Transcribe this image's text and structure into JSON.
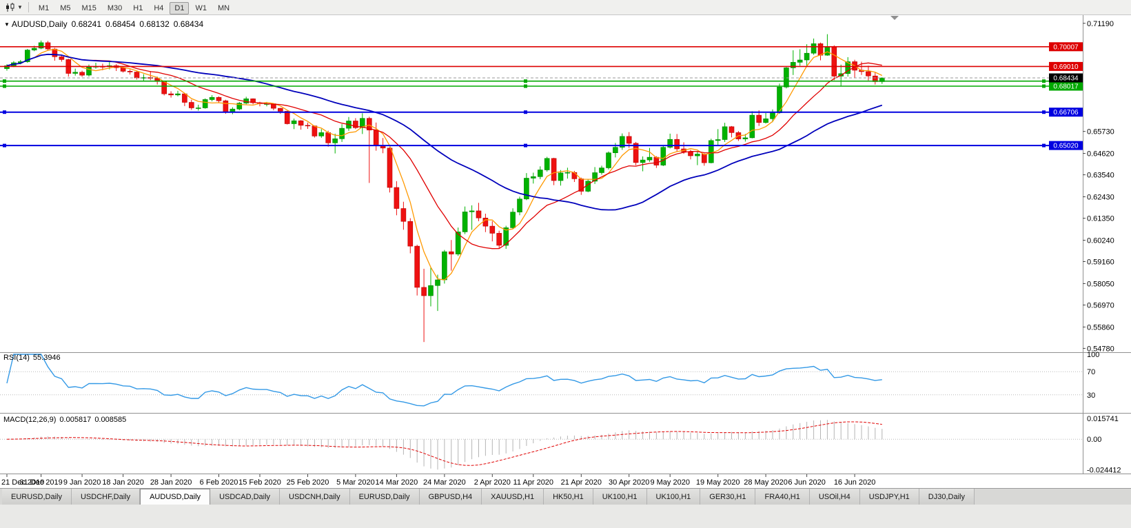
{
  "toolbar": {
    "timeframes": [
      "M1",
      "M5",
      "M15",
      "M30",
      "H1",
      "H4",
      "D1",
      "W1",
      "MN"
    ],
    "active_timeframe": "D1"
  },
  "chart_header": {
    "symbol": "AUDUSD,Daily",
    "open": "0.68241",
    "high": "0.68454",
    "low": "0.68132",
    "close": "0.68434"
  },
  "rsi_panel": {
    "name": "RSI(14)",
    "value": "55.3946"
  },
  "macd_panel": {
    "name": "MACD(12,26,9)",
    "main": "0.005817",
    "signal": "0.008585"
  },
  "tabs": {
    "items": [
      "EURUSD,Daily",
      "USDCHF,Daily",
      "AUDUSD,Daily",
      "USDCAD,Daily",
      "USDCNH,Daily",
      "EURUSD,Daily",
      "GBPUSD,H4",
      "XAUUSD,H1",
      "HK50,H1",
      "UK100,H1",
      "UK100,H1",
      "GER30,H1",
      "FRA40,H1",
      "USOil,H4",
      "USDJPY,H1",
      "DJ30,Daily"
    ],
    "active_index": 2
  },
  "chart_data": {
    "type": "candlestick",
    "symbol": "AUDUSD",
    "timeframe": "Daily",
    "ylim": [
      0.5462,
      0.716
    ],
    "colors": {
      "up": "#00b200",
      "down": "#ee1111",
      "up_border": "#008800",
      "down_border": "#bb0000",
      "background": "#ffffff",
      "axis_text": "#000000"
    },
    "candles": [
      [
        0.689,
        0.6912,
        0.688,
        0.6905
      ],
      [
        0.6905,
        0.6928,
        0.6898,
        0.692
      ],
      [
        0.692,
        0.6934,
        0.6912,
        0.6925
      ],
      [
        0.6925,
        0.699,
        0.692,
        0.6984
      ],
      [
        0.6984,
        0.7006,
        0.6978,
        0.6993
      ],
      [
        0.6993,
        0.7032,
        0.6988,
        0.7021
      ],
      [
        0.7021,
        0.703,
        0.698,
        0.6989
      ],
      [
        0.6989,
        0.6995,
        0.693,
        0.695
      ],
      [
        0.695,
        0.696,
        0.6925,
        0.6936
      ],
      [
        0.6936,
        0.694,
        0.685,
        0.6866
      ],
      [
        0.6866,
        0.689,
        0.6855,
        0.6872
      ],
      [
        0.6872,
        0.688,
        0.6849,
        0.6857
      ],
      [
        0.6857,
        0.6911,
        0.685,
        0.6901
      ],
      [
        0.6901,
        0.692,
        0.689,
        0.6901
      ],
      [
        0.6901,
        0.6915,
        0.6882,
        0.69
      ],
      [
        0.69,
        0.6925,
        0.6886,
        0.6905
      ],
      [
        0.6905,
        0.6913,
        0.6878,
        0.6895
      ],
      [
        0.6895,
        0.69,
        0.687,
        0.6877
      ],
      [
        0.6877,
        0.6886,
        0.686,
        0.6873
      ],
      [
        0.6873,
        0.6878,
        0.6835,
        0.6843
      ],
      [
        0.6843,
        0.6862,
        0.6827,
        0.6845
      ],
      [
        0.6845,
        0.6878,
        0.6832,
        0.6841
      ],
      [
        0.6841,
        0.685,
        0.681,
        0.6825
      ],
      [
        0.6825,
        0.6828,
        0.6755,
        0.6763
      ],
      [
        0.6763,
        0.6776,
        0.6744,
        0.6757
      ],
      [
        0.6757,
        0.6778,
        0.675,
        0.6763
      ],
      [
        0.6763,
        0.6765,
        0.6701,
        0.672
      ],
      [
        0.672,
        0.6733,
        0.6682,
        0.6692
      ],
      [
        0.6692,
        0.6708,
        0.6678,
        0.6692
      ],
      [
        0.6692,
        0.674,
        0.6688,
        0.6734
      ],
      [
        0.6734,
        0.6756,
        0.6725,
        0.6745
      ],
      [
        0.6745,
        0.675,
        0.6717,
        0.6728
      ],
      [
        0.6728,
        0.6733,
        0.6662,
        0.6671
      ],
      [
        0.6671,
        0.6695,
        0.666,
        0.6686
      ],
      [
        0.6686,
        0.6722,
        0.668,
        0.6716
      ],
      [
        0.6716,
        0.6748,
        0.671,
        0.6738
      ],
      [
        0.6738,
        0.674,
        0.671,
        0.6718
      ],
      [
        0.6718,
        0.6723,
        0.67,
        0.6713
      ],
      [
        0.6713,
        0.6722,
        0.67,
        0.6713
      ],
      [
        0.6713,
        0.6715,
        0.668,
        0.669
      ],
      [
        0.669,
        0.6692,
        0.6662,
        0.6675
      ],
      [
        0.6675,
        0.6677,
        0.6608,
        0.6612
      ],
      [
        0.6612,
        0.6638,
        0.6585,
        0.6627
      ],
      [
        0.6627,
        0.663,
        0.6582,
        0.6604
      ],
      [
        0.6604,
        0.6618,
        0.6586,
        0.6601
      ],
      [
        0.6601,
        0.6603,
        0.6542,
        0.655
      ],
      [
        0.655,
        0.6585,
        0.6541,
        0.6567
      ],
      [
        0.6567,
        0.6577,
        0.6496,
        0.6515
      ],
      [
        0.6515,
        0.6562,
        0.6462,
        0.6536
      ],
      [
        0.6536,
        0.661,
        0.652,
        0.6589
      ],
      [
        0.6589,
        0.6646,
        0.6576,
        0.6626
      ],
      [
        0.6626,
        0.664,
        0.6585,
        0.6592
      ],
      [
        0.6592,
        0.6665,
        0.656,
        0.6639
      ],
      [
        0.6639,
        0.6647,
        0.6313,
        0.658
      ],
      [
        0.658,
        0.6618,
        0.6476,
        0.6503
      ],
      [
        0.6503,
        0.654,
        0.6463,
        0.6489
      ],
      [
        0.6489,
        0.6493,
        0.6265,
        0.629
      ],
      [
        0.629,
        0.6322,
        0.615,
        0.6184
      ],
      [
        0.6184,
        0.6218,
        0.6077,
        0.6119
      ],
      [
        0.6119,
        0.6135,
        0.5958,
        0.5994
      ],
      [
        0.5994,
        0.6001,
        0.5745,
        0.5786
      ],
      [
        0.5786,
        0.588,
        0.551,
        0.5744
      ],
      [
        0.5744,
        0.5885,
        0.569,
        0.5795
      ],
      [
        0.5795,
        0.585,
        0.5667,
        0.5824
      ],
      [
        0.5824,
        0.5975,
        0.5805,
        0.5966
      ],
      [
        0.5966,
        0.6025,
        0.587,
        0.5954
      ],
      [
        0.5954,
        0.6088,
        0.5945,
        0.6066
      ],
      [
        0.6066,
        0.6194,
        0.6055,
        0.6167
      ],
      [
        0.6167,
        0.62,
        0.6076,
        0.6172
      ],
      [
        0.6172,
        0.6213,
        0.612,
        0.6136
      ],
      [
        0.6136,
        0.6158,
        0.6065,
        0.6095
      ],
      [
        0.6095,
        0.612,
        0.6018,
        0.6059
      ],
      [
        0.6059,
        0.6072,
        0.5982,
        0.5998
      ],
      [
        0.5998,
        0.6097,
        0.598,
        0.6087
      ],
      [
        0.6087,
        0.6185,
        0.608,
        0.6166
      ],
      [
        0.6166,
        0.6244,
        0.615,
        0.6232
      ],
      [
        0.6232,
        0.6363,
        0.6226,
        0.6337
      ],
      [
        0.6337,
        0.6365,
        0.631,
        0.6345
      ],
      [
        0.6345,
        0.6397,
        0.6332,
        0.6379
      ],
      [
        0.6379,
        0.6445,
        0.637,
        0.6437
      ],
      [
        0.6437,
        0.644,
        0.6302,
        0.6325
      ],
      [
        0.6325,
        0.6378,
        0.63,
        0.6364
      ],
      [
        0.6364,
        0.639,
        0.6335,
        0.6366
      ],
      [
        0.6366,
        0.6374,
        0.6318,
        0.6334
      ],
      [
        0.6334,
        0.634,
        0.6253,
        0.6271
      ],
      [
        0.6271,
        0.633,
        0.6266,
        0.6322
      ],
      [
        0.6322,
        0.6393,
        0.6308,
        0.6365
      ],
      [
        0.6365,
        0.64,
        0.6355,
        0.6389
      ],
      [
        0.6389,
        0.6472,
        0.6381,
        0.6465
      ],
      [
        0.6465,
        0.6515,
        0.6442,
        0.6493
      ],
      [
        0.6493,
        0.6563,
        0.648,
        0.6548
      ],
      [
        0.6548,
        0.657,
        0.649,
        0.6513
      ],
      [
        0.6513,
        0.652,
        0.6402,
        0.6416
      ],
      [
        0.6416,
        0.6447,
        0.6372,
        0.6429
      ],
      [
        0.6429,
        0.649,
        0.642,
        0.6443
      ],
      [
        0.6443,
        0.6448,
        0.6389,
        0.6403
      ],
      [
        0.6403,
        0.65,
        0.6398,
        0.6493
      ],
      [
        0.6493,
        0.6562,
        0.6487,
        0.6533
      ],
      [
        0.6533,
        0.656,
        0.6472,
        0.6485
      ],
      [
        0.6485,
        0.6518,
        0.646,
        0.647
      ],
      [
        0.647,
        0.648,
        0.6432,
        0.645
      ],
      [
        0.645,
        0.6475,
        0.6403,
        0.6459
      ],
      [
        0.6459,
        0.6462,
        0.64,
        0.6415
      ],
      [
        0.6415,
        0.6536,
        0.6412,
        0.6527
      ],
      [
        0.6527,
        0.6585,
        0.6505,
        0.6532
      ],
      [
        0.6532,
        0.6617,
        0.652,
        0.6597
      ],
      [
        0.6597,
        0.66,
        0.6543,
        0.6567
      ],
      [
        0.6567,
        0.6575,
        0.6525,
        0.6535
      ],
      [
        0.6535,
        0.656,
        0.6522,
        0.6541
      ],
      [
        0.6541,
        0.6675,
        0.6538,
        0.6655
      ],
      [
        0.6655,
        0.668,
        0.6601,
        0.6618
      ],
      [
        0.6618,
        0.6666,
        0.6613,
        0.6637
      ],
      [
        0.6637,
        0.6684,
        0.662,
        0.6667
      ],
      [
        0.6667,
        0.6815,
        0.6662,
        0.6797
      ],
      [
        0.6797,
        0.6898,
        0.679,
        0.6894
      ],
      [
        0.6894,
        0.6983,
        0.6858,
        0.6922
      ],
      [
        0.6922,
        0.6988,
        0.6905,
        0.6934
      ],
      [
        0.6934,
        0.7013,
        0.69,
        0.6968
      ],
      [
        0.6968,
        0.7042,
        0.696,
        0.7016
      ],
      [
        0.7016,
        0.7022,
        0.6932,
        0.6958
      ],
      [
        0.6958,
        0.7064,
        0.6955,
        0.7
      ],
      [
        0.7,
        0.7008,
        0.6832,
        0.6852
      ],
      [
        0.6852,
        0.691,
        0.6802,
        0.6865
      ],
      [
        0.6865,
        0.6948,
        0.685,
        0.6925
      ],
      [
        0.6925,
        0.6935,
        0.6845,
        0.6882
      ],
      [
        0.6882,
        0.6925,
        0.6858,
        0.6875
      ],
      [
        0.6875,
        0.6905,
        0.683,
        0.6853
      ],
      [
        0.6853,
        0.687,
        0.681,
        0.6824
      ],
      [
        0.68241,
        0.68454,
        0.68132,
        0.68434
      ]
    ],
    "x_ticks": [
      {
        "label": "21 Dec 2019",
        "i": 0
      },
      {
        "label": "31 Dec 2019",
        "i": 5
      },
      {
        "label": "9 Jan 2020",
        "i": 11
      },
      {
        "label": "18 Jan 2020",
        "i": 17
      },
      {
        "label": "28 Jan 2020",
        "i": 24
      },
      {
        "label": "6 Feb 2020",
        "i": 31
      },
      {
        "label": "15 Feb 2020",
        "i": 37
      },
      {
        "label": "25 Feb 2020",
        "i": 44
      },
      {
        "label": "5 Mar 2020",
        "i": 51
      },
      {
        "label": "14 Mar 2020",
        "i": 57
      },
      {
        "label": "24 Mar 2020",
        "i": 64
      },
      {
        "label": "2 Apr 2020",
        "i": 71
      },
      {
        "label": "11 Apr 2020",
        "i": 77
      },
      {
        "label": "21 Apr 2020",
        "i": 84
      },
      {
        "label": "30 Apr 2020",
        "i": 91
      },
      {
        "label": "9 May 2020",
        "i": 97
      },
      {
        "label": "19 May 2020",
        "i": 104
      },
      {
        "label": "28 May 2020",
        "i": 111
      },
      {
        "label": "6 Jun 2020",
        "i": 117
      },
      {
        "label": "16 Jun 2020",
        "i": 124
      }
    ],
    "y_ticks": [
      {
        "label": "0.71190",
        "v": 0.7119
      },
      {
        "label": "0.65730",
        "v": 0.6573
      },
      {
        "label": "0.64620",
        "v": 0.6462
      },
      {
        "label": "0.63540",
        "v": 0.6354
      },
      {
        "label": "0.62430",
        "v": 0.6243
      },
      {
        "label": "0.61350",
        "v": 0.6135
      },
      {
        "label": "0.60240",
        "v": 0.6024
      },
      {
        "label": "0.59160",
        "v": 0.5916
      },
      {
        "label": "0.58050",
        "v": 0.5805
      },
      {
        "label": "0.56970",
        "v": 0.5697
      },
      {
        "label": "0.55860",
        "v": 0.5586
      },
      {
        "label": "0.54780",
        "v": 0.5478
      }
    ],
    "hlines": [
      {
        "value": 0.70007,
        "label": "0.70007",
        "color": "#dd0000",
        "width": 1.6,
        "handles": false
      },
      {
        "value": 0.6901,
        "label": "0.69010",
        "color": "#dd0000",
        "width": 1.6,
        "handles": false
      },
      {
        "value": 0.6827,
        "label": "0.68270",
        "color": "#00a800",
        "width": 1.6,
        "handles": true
      },
      {
        "value": 0.68017,
        "label": "0.68017",
        "color": "#00a800",
        "width": 1.6,
        "handles": true
      },
      {
        "value": 0.66706,
        "label": "0.66706",
        "color": "#0000e0",
        "width": 2,
        "handles": true
      },
      {
        "value": 0.6502,
        "label": "0.65020",
        "color": "#0000e0",
        "width": 2,
        "handles": true
      }
    ],
    "current_price": {
      "value": 0.68434,
      "label": "0.68434",
      "box_color": "#000000"
    },
    "moving_averages": [
      {
        "type": "sma",
        "period": 5,
        "color": "#ff9900",
        "width": 1.3
      },
      {
        "type": "sma",
        "period": 13,
        "color": "#e00000",
        "width": 1.3
      },
      {
        "type": "sma",
        "period": 34,
        "color": "#0000bb",
        "width": 1.8
      }
    ],
    "rsi": {
      "period": 14,
      "color": "#3399e6",
      "current": 55.3946,
      "levels": [
        {
          "label": "100",
          "v": 100
        },
        {
          "label": "70",
          "v": 70
        },
        {
          "label": "30",
          "v": 30
        }
      ]
    },
    "macd": {
      "fast": 12,
      "slow": 26,
      "signal": 9,
      "histogram_color": "#b4b4b4",
      "signal_color": "#e00000",
      "scale_max": 0.015741,
      "scale_min": -0.024412,
      "current_main": 0.005817,
      "current_signal": 0.008585,
      "levels": [
        {
          "label": "0.015741",
          "v": 0.015741
        },
        {
          "label": "0.00",
          "v": 0
        },
        {
          "label": "-0.024412",
          "v": -0.024412
        }
      ]
    }
  }
}
